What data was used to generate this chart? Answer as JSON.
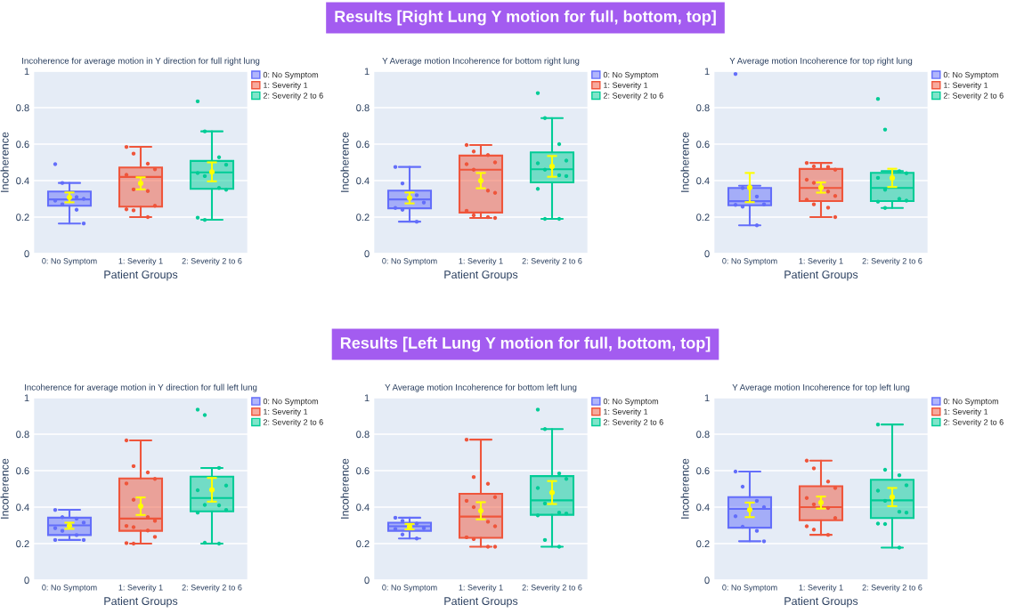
{
  "chart_data": [
    {
      "type": "box",
      "subtitle": "Incoherence for average motion in Y direction for full right lung",
      "xlabel": "Patient Groups",
      "ylabel": "Incoherence",
      "categories": [
        "0: No Symptom",
        "1: Severity 1",
        "2: Severity 2 to 6"
      ],
      "ylim": [
        0,
        1
      ],
      "yticks": [
        0,
        0.2,
        0.4,
        0.6,
        0.8,
        1
      ],
      "grid": "y",
      "legend": "right",
      "series": [
        {
          "name": "0: No Symptom",
          "color": "#636efa",
          "boxes": [
            {
              "low": 0.165,
              "q1": 0.262,
              "median": 0.297,
              "q3": 0.34,
              "high": 0.387
            },
            null,
            null
          ]
        },
        {
          "name": "1: Severity 1",
          "color": "#ef553b",
          "boxes": [
            null,
            {
              "low": 0.2,
              "q1": 0.257,
              "median": 0.42,
              "q3": 0.472,
              "high": 0.585
            },
            null
          ]
        },
        {
          "name": "2: Severity 2 to 6",
          "color": "#00cc96",
          "boxes": [
            null,
            null,
            {
              "low": 0.185,
              "q1": 0.355,
              "median": 0.445,
              "q3": 0.508,
              "high": 0.67
            }
          ]
        },
        {
          "type": "scatter",
          "color": "#636efa",
          "x": [
            "0: No Symptom",
            "0: No Symptom",
            "0: No Symptom",
            "0: No Symptom",
            "0: No Symptom",
            "0: No Symptom",
            "0: No Symptom",
            "0: No Symptom"
          ],
          "values": [
            0.49,
            0.387,
            0.31,
            0.3,
            0.29,
            0.27,
            0.24,
            0.165
          ]
        },
        {
          "type": "scatter",
          "color": "#ef553b",
          "x": [
            "1: Severity 1",
            "1: Severity 1",
            "1: Severity 1",
            "1: Severity 1",
            "1: Severity 1",
            "1: Severity 1",
            "1: Severity 1",
            "1: Severity 1",
            "1: Severity 1",
            "1: Severity 1",
            "1: Severity 1"
          ],
          "values": [
            0.585,
            0.548,
            0.493,
            0.462,
            0.432,
            0.352,
            0.343,
            0.262,
            0.243,
            0.237,
            0.2
          ]
        },
        {
          "type": "scatter",
          "color": "#00cc96",
          "x": [
            "2: Severity 2 to 6",
            "2: Severity 2 to 6",
            "2: Severity 2 to 6",
            "2: Severity 2 to 6",
            "2: Severity 2 to 6",
            "2: Severity 2 to 6",
            "2: Severity 2 to 6",
            "2: Severity 2 to 6",
            "2: Severity 2 to 6",
            "2: Severity 2 to 6"
          ],
          "values": [
            0.835,
            0.67,
            0.528,
            0.487,
            0.442,
            0.425,
            0.36,
            0.35,
            0.197,
            0.185
          ]
        },
        {
          "type": "scatter",
          "color": "#ffff00",
          "x": [
            "0: No Symptom",
            "1: Severity 1",
            "2: Severity 2 to 6"
          ],
          "values": [
            0.308,
            0.385,
            0.448
          ],
          "errors": [
            0.027,
            0.033,
            0.052
          ]
        }
      ]
    },
    {
      "type": "box",
      "title": "Results [Right Lung Y motion for full, bottom, top]",
      "subtitle": "Y Average motion Incoherence for bottom right lung",
      "xlabel": "Patient Groups",
      "ylabel": "Incoherence",
      "categories": [
        "0: No Symptom",
        "1: Severity 1",
        "2: Severity 2 to 6"
      ],
      "ylim": [
        0,
        1
      ],
      "yticks": [
        0,
        0.2,
        0.4,
        0.6,
        0.8,
        1
      ],
      "grid": "y",
      "legend": "right",
      "series": [
        {
          "name": "0: No Symptom",
          "color": "#636efa",
          "boxes": [
            {
              "low": 0.175,
              "q1": 0.248,
              "median": 0.297,
              "q3": 0.345,
              "high": 0.475
            },
            null,
            null
          ]
        },
        {
          "name": "1: Severity 1",
          "color": "#ef553b",
          "boxes": [
            null,
            {
              "low": 0.195,
              "q1": 0.225,
              "median": 0.46,
              "q3": 0.537,
              "high": 0.595
            },
            null
          ]
        },
        {
          "name": "2: Severity 2 to 6",
          "color": "#00cc96",
          "boxes": [
            null,
            null,
            {
              "low": 0.19,
              "q1": 0.39,
              "median": 0.462,
              "q3": 0.555,
              "high": 0.743
            }
          ]
        },
        {
          "type": "scatter",
          "color": "#636efa",
          "x": [
            "0: No Symptom",
            "0: No Symptom",
            "0: No Symptom",
            "0: No Symptom",
            "0: No Symptom",
            "0: No Symptom",
            "0: No Symptom"
          ],
          "values": [
            0.475,
            0.385,
            0.32,
            0.28,
            0.25,
            0.24,
            0.175
          ]
        },
        {
          "type": "scatter",
          "color": "#ef553b",
          "x": [
            "1: Severity 1",
            "1: Severity 1",
            "1: Severity 1",
            "1: Severity 1",
            "1: Severity 1",
            "1: Severity 1",
            "1: Severity 1",
            "1: Severity 1",
            "1: Severity 1",
            "1: Severity 1",
            "1: Severity 1",
            "1: Severity 1"
          ],
          "values": [
            0.595,
            0.56,
            0.54,
            0.5,
            0.49,
            0.46,
            0.345,
            0.333,
            0.235,
            0.21,
            0.2,
            0.195
          ]
        },
        {
          "type": "scatter",
          "color": "#00cc96",
          "x": [
            "2: Severity 2 to 6",
            "2: Severity 2 to 6",
            "2: Severity 2 to 6",
            "2: Severity 2 to 6",
            "2: Severity 2 to 6",
            "2: Severity 2 to 6",
            "2: Severity 2 to 6",
            "2: Severity 2 to 6",
            "2: Severity 2 to 6",
            "2: Severity 2 to 6",
            "2: Severity 2 to 6"
          ],
          "values": [
            0.88,
            0.743,
            0.6,
            0.51,
            0.495,
            0.46,
            0.43,
            0.425,
            0.355,
            0.19,
            0.19
          ]
        },
        {
          "type": "scatter",
          "color": "#ffff00",
          "x": [
            "0: No Symptom",
            "1: Severity 1",
            "2: Severity 2 to 6"
          ],
          "values": [
            0.305,
            0.4,
            0.478
          ],
          "errors": [
            0.03,
            0.042,
            0.057
          ]
        }
      ]
    },
    {
      "type": "box",
      "subtitle": "Y Average motion Incoherence for top right lung",
      "xlabel": "Patient Groups",
      "ylabel": "Incoherence",
      "categories": [
        "0: No Symptom",
        "1: Severity 1",
        "2: Severity 2 to 6"
      ],
      "ylim": [
        0,
        1
      ],
      "yticks": [
        0,
        0.2,
        0.4,
        0.6,
        0.8,
        1
      ],
      "grid": "y",
      "legend": "right",
      "series": [
        {
          "name": "0: No Symptom",
          "color": "#636efa",
          "boxes": [
            {
              "low": 0.155,
              "q1": 0.265,
              "median": 0.287,
              "q3": 0.36,
              "high": 0.372
            },
            null,
            null
          ]
        },
        {
          "name": "1: Severity 1",
          "color": "#ef553b",
          "boxes": [
            null,
            {
              "low": 0.2,
              "q1": 0.288,
              "median": 0.36,
              "q3": 0.464,
              "high": 0.497
            },
            null
          ]
        },
        {
          "name": "2: Severity 2 to 6",
          "color": "#00cc96",
          "boxes": [
            null,
            null,
            {
              "low": 0.25,
              "q1": 0.288,
              "median": 0.36,
              "q3": 0.443,
              "high": 0.452
            }
          ]
        },
        {
          "type": "scatter",
          "color": "#636efa",
          "x": [
            "0: No Symptom",
            "0: No Symptom",
            "0: No Symptom",
            "0: No Symptom",
            "0: No Symptom",
            "0: No Symptom",
            "0: No Symptom"
          ],
          "values": [
            0.985,
            0.36,
            0.313,
            0.27,
            0.267,
            0.257,
            0.155
          ]
        },
        {
          "type": "scatter",
          "color": "#ef553b",
          "x": [
            "1: Severity 1",
            "1: Severity 1",
            "1: Severity 1",
            "1: Severity 1",
            "1: Severity 1",
            "1: Severity 1",
            "1: Severity 1",
            "1: Severity 1",
            "1: Severity 1",
            "1: Severity 1",
            "1: Severity 1",
            "1: Severity 1"
          ],
          "values": [
            0.497,
            0.478,
            0.475,
            0.46,
            0.405,
            0.388,
            0.34,
            0.316,
            0.295,
            0.27,
            0.252,
            0.2
          ]
        },
        {
          "type": "scatter",
          "color": "#00cc96",
          "x": [
            "2: Severity 2 to 6",
            "2: Severity 2 to 6",
            "2: Severity 2 to 6",
            "2: Severity 2 to 6",
            "2: Severity 2 to 6",
            "2: Severity 2 to 6",
            "2: Severity 2 to 6",
            "2: Severity 2 to 6",
            "2: Severity 2 to 6",
            "2: Severity 2 to 6"
          ],
          "values": [
            0.848,
            0.68,
            0.452,
            0.44,
            0.415,
            0.35,
            0.3,
            0.29,
            0.285,
            0.25
          ]
        },
        {
          "type": "scatter",
          "color": "#ffff00",
          "x": [
            "0: No Symptom",
            "1: Severity 1",
            "2: Severity 2 to 6"
          ],
          "values": [
            0.362,
            0.362,
            0.415
          ],
          "errors": [
            0.08,
            0.028,
            0.05
          ]
        }
      ]
    },
    {
      "type": "box",
      "subtitle": "Incoherence for average motion in Y direction for full left lung",
      "xlabel": "Patient Groups",
      "ylabel": "Incoherence",
      "categories": [
        "0: No Symptom",
        "1: Severity 1",
        "2: Severity 2 to 6"
      ],
      "ylim": [
        0,
        1
      ],
      "yticks": [
        0,
        0.2,
        0.4,
        0.6,
        0.8,
        1
      ],
      "grid": "y",
      "legend": "right",
      "series": [
        {
          "name": "0: No Symptom",
          "color": "#636efa",
          "boxes": [
            {
              "low": 0.22,
              "q1": 0.247,
              "median": 0.3,
              "q3": 0.342,
              "high": 0.385
            },
            null,
            null
          ]
        },
        {
          "name": "1: Severity 1",
          "color": "#ef553b",
          "boxes": [
            null,
            {
              "low": 0.2,
              "q1": 0.27,
              "median": 0.337,
              "q3": 0.557,
              "high": 0.766
            },
            null
          ]
        },
        {
          "name": "2: Severity 2 to 6",
          "color": "#00cc96",
          "boxes": [
            null,
            null,
            {
              "low": 0.2,
              "q1": 0.377,
              "median": 0.45,
              "q3": 0.567,
              "high": 0.615
            }
          ]
        },
        {
          "type": "scatter",
          "color": "#636efa",
          "x": [
            "0: No Symptom",
            "0: No Symptom",
            "0: No Symptom",
            "0: No Symptom",
            "0: No Symptom",
            "0: No Symptom",
            "0: No Symptom",
            "0: No Symptom",
            "0: No Symptom"
          ],
          "values": [
            0.385,
            0.345,
            0.337,
            0.315,
            0.285,
            0.27,
            0.247,
            0.22,
            0.22
          ]
        },
        {
          "type": "scatter",
          "color": "#ef553b",
          "x": [
            "1: Severity 1",
            "1: Severity 1",
            "1: Severity 1",
            "1: Severity 1",
            "1: Severity 1",
            "1: Severity 1",
            "1: Severity 1",
            "1: Severity 1",
            "1: Severity 1",
            "1: Severity 1",
            "1: Severity 1",
            "1: Severity 1",
            "1: Severity 1",
            "1: Severity 1"
          ],
          "values": [
            0.766,
            0.625,
            0.59,
            0.555,
            0.53,
            0.44,
            0.345,
            0.325,
            0.297,
            0.29,
            0.272,
            0.237,
            0.203,
            0.2
          ]
        },
        {
          "type": "scatter",
          "color": "#00cc96",
          "x": [
            "2: Severity 2 to 6",
            "2: Severity 2 to 6",
            "2: Severity 2 to 6",
            "2: Severity 2 to 6",
            "2: Severity 2 to 6",
            "2: Severity 2 to 6",
            "2: Severity 2 to 6",
            "2: Severity 2 to 6",
            "2: Severity 2 to 6",
            "2: Severity 2 to 6",
            "2: Severity 2 to 6"
          ],
          "values": [
            0.935,
            0.905,
            0.615,
            0.518,
            0.493,
            0.412,
            0.41,
            0.385,
            0.37,
            0.205,
            0.2
          ]
        },
        {
          "type": "scatter",
          "color": "#ffff00",
          "x": [
            "0: No Symptom",
            "1: Severity 1",
            "2: Severity 2 to 6"
          ],
          "values": [
            0.298,
            0.405,
            0.495
          ],
          "errors": [
            0.017,
            0.048,
            0.065
          ]
        }
      ]
    },
    {
      "type": "box",
      "title": "Results [Left Lung Y motion for full, bottom, top]",
      "subtitle": "Y Average motion Incoherence for bottom left lung",
      "xlabel": "Patient Groups",
      "ylabel": "Incoherence",
      "categories": [
        "0: No Symptom",
        "1: Severity 1",
        "2: Severity 2 to 6"
      ],
      "ylim": [
        0,
        1
      ],
      "yticks": [
        0,
        0.2,
        0.4,
        0.6,
        0.8,
        1
      ],
      "grid": "y",
      "legend": "right",
      "series": [
        {
          "name": "0: No Symptom",
          "color": "#636efa",
          "boxes": [
            {
              "low": 0.228,
              "q1": 0.27,
              "median": 0.295,
              "q3": 0.315,
              "high": 0.342
            },
            null,
            null
          ]
        },
        {
          "name": "1: Severity 1",
          "color": "#ef553b",
          "boxes": [
            null,
            {
              "low": 0.183,
              "q1": 0.232,
              "median": 0.348,
              "q3": 0.473,
              "high": 0.77
            },
            null
          ]
        },
        {
          "name": "2: Severity 2 to 6",
          "color": "#00cc96",
          "boxes": [
            null,
            null,
            {
              "low": 0.183,
              "q1": 0.358,
              "median": 0.437,
              "q3": 0.57,
              "high": 0.828
            }
          ]
        },
        {
          "type": "scatter",
          "color": "#636efa",
          "x": [
            "0: No Symptom",
            "0: No Symptom",
            "0: No Symptom",
            "0: No Symptom",
            "0: No Symptom",
            "0: No Symptom",
            "0: No Symptom"
          ],
          "values": [
            0.342,
            0.325,
            0.31,
            0.285,
            0.28,
            0.25,
            0.228
          ]
        },
        {
          "type": "scatter",
          "color": "#ef553b",
          "x": [
            "1: Severity 1",
            "1: Severity 1",
            "1: Severity 1",
            "1: Severity 1",
            "1: Severity 1",
            "1: Severity 1",
            "1: Severity 1",
            "1: Severity 1",
            "1: Severity 1",
            "1: Severity 1",
            "1: Severity 1",
            "1: Severity 1"
          ],
          "values": [
            0.77,
            0.565,
            0.528,
            0.455,
            0.435,
            0.4,
            0.32,
            0.295,
            0.235,
            0.225,
            0.183,
            0.183
          ]
        },
        {
          "type": "scatter",
          "color": "#00cc96",
          "x": [
            "2: Severity 2 to 6",
            "2: Severity 2 to 6",
            "2: Severity 2 to 6",
            "2: Severity 2 to 6",
            "2: Severity 2 to 6",
            "2: Severity 2 to 6",
            "2: Severity 2 to 6",
            "2: Severity 2 to 6",
            "2: Severity 2 to 6",
            "2: Severity 2 to 6",
            "2: Severity 2 to 6"
          ],
          "values": [
            0.935,
            0.828,
            0.585,
            0.555,
            0.505,
            0.42,
            0.37,
            0.365,
            0.355,
            0.22,
            0.183
          ]
        },
        {
          "type": "scatter",
          "color": "#ffff00",
          "x": [
            "0: No Symptom",
            "1: Severity 1",
            "2: Severity 2 to 6"
          ],
          "values": [
            0.293,
            0.38,
            0.48
          ],
          "errors": [
            0.015,
            0.047,
            0.063
          ]
        }
      ]
    },
    {
      "type": "box",
      "subtitle": "Y Average motion Incoherence for top left lung",
      "xlabel": "Patient Groups",
      "ylabel": "Incoherence",
      "categories": [
        "0: No Symptom",
        "1: Severity 1",
        "2: Severity 2 to 6"
      ],
      "ylim": [
        0,
        1
      ],
      "yticks": [
        0,
        0.2,
        0.4,
        0.6,
        0.8,
        1
      ],
      "grid": "y",
      "legend": "right",
      "series": [
        {
          "name": "0: No Symptom",
          "color": "#636efa",
          "boxes": [
            {
              "low": 0.213,
              "q1": 0.287,
              "median": 0.39,
              "q3": 0.455,
              "high": 0.595
            },
            null,
            null
          ]
        },
        {
          "name": "1: Severity 1",
          "color": "#ef553b",
          "boxes": [
            null,
            {
              "low": 0.248,
              "q1": 0.328,
              "median": 0.4,
              "q3": 0.515,
              "high": 0.655
            },
            null
          ]
        },
        {
          "name": "2: Severity 2 to 6",
          "color": "#00cc96",
          "boxes": [
            null,
            null,
            {
              "low": 0.178,
              "q1": 0.34,
              "median": 0.437,
              "q3": 0.55,
              "high": 0.853
            }
          ]
        },
        {
          "type": "scatter",
          "color": "#636efa",
          "x": [
            "0: No Symptom",
            "0: No Symptom",
            "0: No Symptom",
            "0: No Symptom",
            "0: No Symptom",
            "0: No Symptom",
            "0: No Symptom",
            "0: No Symptom"
          ],
          "values": [
            0.595,
            0.512,
            0.435,
            0.4,
            0.35,
            0.293,
            0.27,
            0.213
          ]
        },
        {
          "type": "scatter",
          "color": "#ef553b",
          "x": [
            "1: Severity 1",
            "1: Severity 1",
            "1: Severity 1",
            "1: Severity 1",
            "1: Severity 1",
            "1: Severity 1",
            "1: Severity 1",
            "1: Severity 1",
            "1: Severity 1",
            "1: Severity 1",
            "1: Severity 1"
          ],
          "values": [
            0.655,
            0.613,
            0.54,
            0.505,
            0.45,
            0.415,
            0.395,
            0.34,
            0.295,
            0.277,
            0.248
          ]
        },
        {
          "type": "scatter",
          "color": "#00cc96",
          "x": [
            "2: Severity 2 to 6",
            "2: Severity 2 to 6",
            "2: Severity 2 to 6",
            "2: Severity 2 to 6",
            "2: Severity 2 to 6",
            "2: Severity 2 to 6",
            "2: Severity 2 to 6",
            "2: Severity 2 to 6",
            "2: Severity 2 to 6",
            "2: Severity 2 to 6",
            "2: Severity 2 to 6"
          ],
          "values": [
            0.853,
            0.605,
            0.575,
            0.52,
            0.49,
            0.435,
            0.375,
            0.37,
            0.31,
            0.307,
            0.178
          ]
        },
        {
          "type": "scatter",
          "color": "#ffff00",
          "x": [
            "0: No Symptom",
            "1: Severity 1",
            "2: Severity 2 to 6"
          ],
          "values": [
            0.385,
            0.425,
            0.455
          ],
          "errors": [
            0.04,
            0.033,
            0.05
          ]
        }
      ]
    }
  ]
}
